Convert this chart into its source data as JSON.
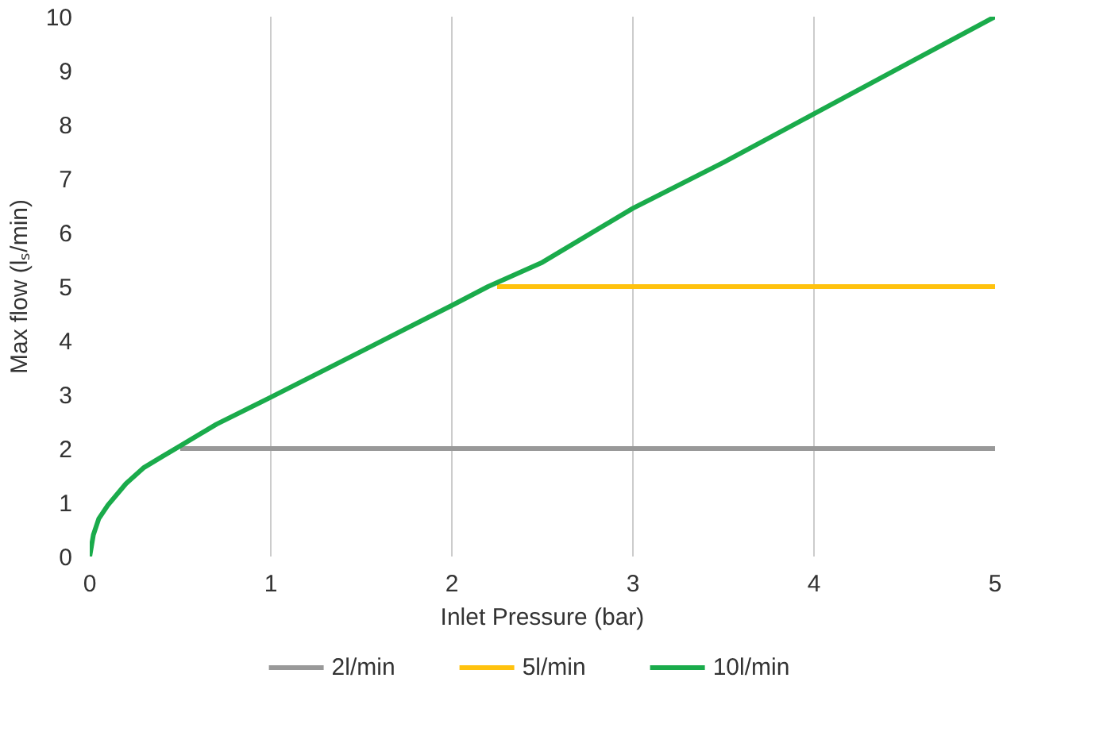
{
  "chart_data": {
    "type": "line",
    "xlabel": "Inlet Pressure (bar)",
    "ylabel": "Max flow (lₛ/min)",
    "xlim": [
      0,
      5
    ],
    "ylim": [
      0,
      10
    ],
    "xticks": [
      0,
      1,
      2,
      3,
      4,
      5
    ],
    "yticks": [
      0,
      1,
      2,
      3,
      4,
      5,
      6,
      7,
      8,
      9,
      10
    ],
    "grid": "x",
    "legend": "bottom",
    "marker": "none",
    "line_style": "solid",
    "series": [
      {
        "name": "2l/min",
        "color": "#999999",
        "x": [
          0.5,
          5
        ],
        "values": [
          2,
          2
        ]
      },
      {
        "name": "5l/min",
        "color": "#ffc20e",
        "x": [
          2.25,
          5
        ],
        "values": [
          5,
          5
        ]
      },
      {
        "name": "10l/min",
        "color": "#1aab4b",
        "x": [
          0,
          0.02,
          0.05,
          0.1,
          0.2,
          0.3,
          0.4,
          0.5,
          0.7,
          1,
          1.5,
          2,
          2.2,
          2.5,
          3,
          3.5,
          4,
          4.5,
          5
        ],
        "values": [
          0,
          0.4,
          0.7,
          0.95,
          1.35,
          1.65,
          1.85,
          2.05,
          2.45,
          2.95,
          3.8,
          4.65,
          5.0,
          5.45,
          6.45,
          7.3,
          8.2,
          9.1,
          10
        ]
      }
    ]
  }
}
